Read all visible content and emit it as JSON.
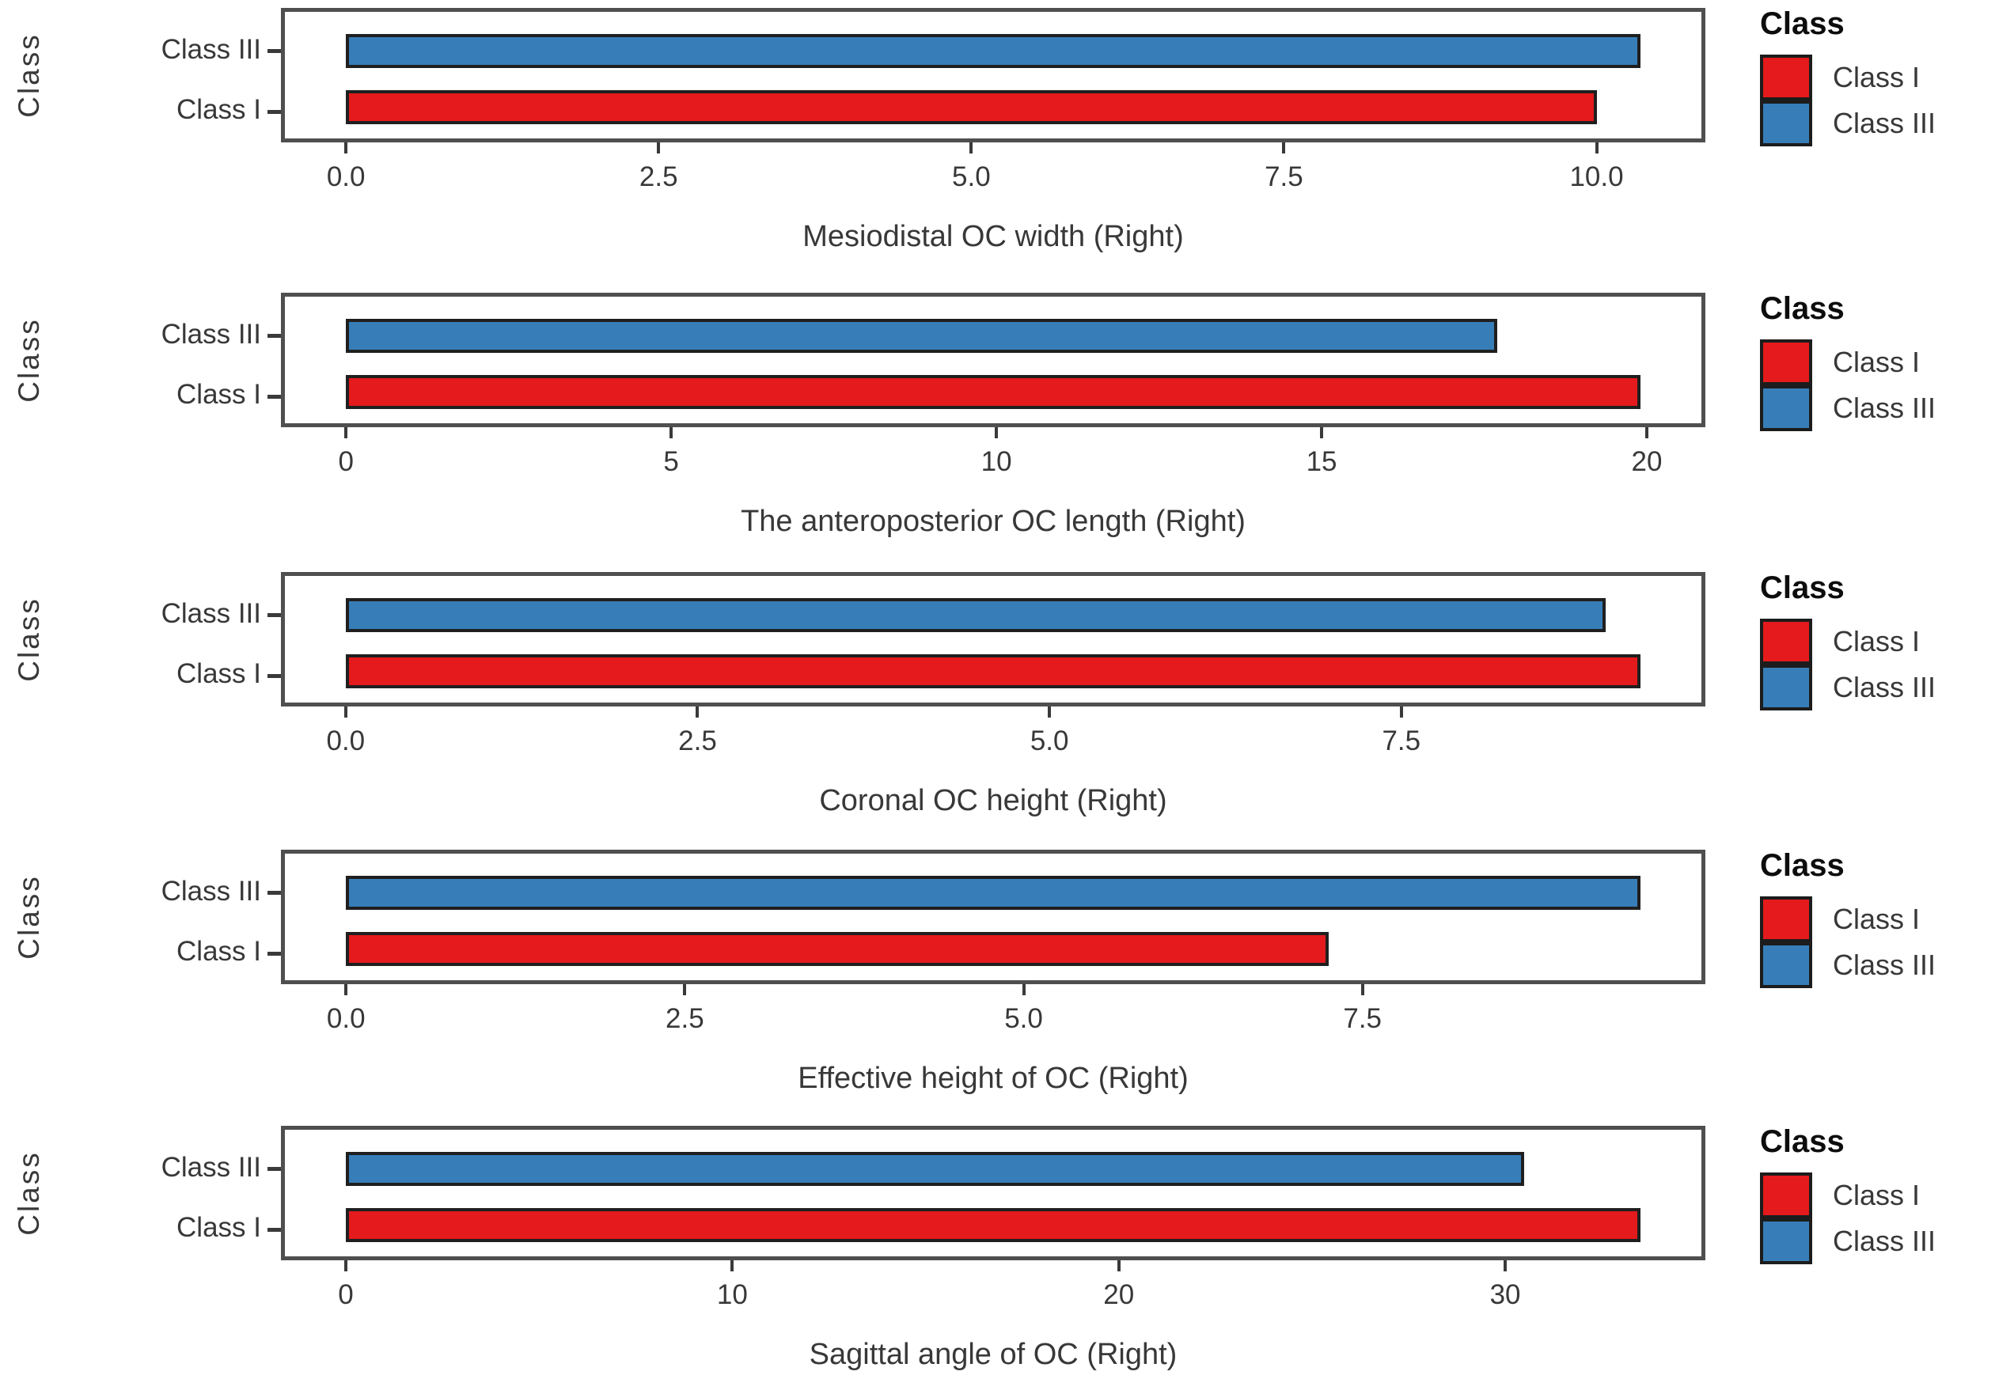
{
  "figure": {
    "y_axis_label": "Class",
    "background": "#ffffff",
    "legend": {
      "title": "Class",
      "position": "right",
      "items": [
        {
          "label": "Class I",
          "color": "#e41a1c"
        },
        {
          "label": "Class III",
          "color": "#377eb8"
        }
      ]
    },
    "colors": {
      "class_i": "#e41a1c",
      "class_iii": "#377eb8",
      "panel_border": "#4f4f4f",
      "bar_outline": "#1f1f1f",
      "text": "#383838"
    }
  },
  "chart_data": [
    {
      "type": "bar",
      "orientation": "horizontal",
      "title": "Mesiodistal OC width (Right)",
      "xlabel": "Mesiodistal OC width (Right)",
      "ylabel": "Class",
      "categories": [
        "Class III",
        "Class I"
      ],
      "series": [
        {
          "name": "Class III",
          "value": 10.35,
          "color": "#377eb8"
        },
        {
          "name": "Class I",
          "value": 10.0,
          "color": "#e41a1c"
        }
      ],
      "xticks": [
        0,
        2.5,
        5,
        7.5,
        10
      ],
      "xtick_labels": [
        "0.0",
        "2.5",
        "5.0",
        "7.5",
        "10.0"
      ],
      "xlim": [
        -0.52,
        10.87
      ],
      "grid": false,
      "legend_position": "right"
    },
    {
      "type": "bar",
      "orientation": "horizontal",
      "title": "The anteroposterior OC length (Right)",
      "xlabel": "The anteroposterior OC length (Right)",
      "ylabel": "Class",
      "categories": [
        "Class III",
        "Class I"
      ],
      "series": [
        {
          "name": "Class III",
          "value": 17.7,
          "color": "#377eb8"
        },
        {
          "name": "Class I",
          "value": 19.9,
          "color": "#e41a1c"
        }
      ],
      "xticks": [
        0,
        5,
        10,
        15,
        20
      ],
      "xtick_labels": [
        "0",
        "5",
        "10",
        "15",
        "20"
      ],
      "xlim": [
        -1.0,
        20.9
      ],
      "grid": false,
      "legend_position": "right"
    },
    {
      "type": "bar",
      "orientation": "horizontal",
      "title": "Coronal OC height (Right)",
      "xlabel": "Coronal OC height (Right)",
      "ylabel": "Class",
      "categories": [
        "Class III",
        "Class I"
      ],
      "series": [
        {
          "name": "Class III",
          "value": 8.95,
          "color": "#377eb8"
        },
        {
          "name": "Class I",
          "value": 9.2,
          "color": "#e41a1c"
        }
      ],
      "xticks": [
        0,
        2.5,
        5,
        7.5
      ],
      "xtick_labels": [
        "0.0",
        "2.5",
        "5.0",
        "7.5"
      ],
      "xlim": [
        -0.46,
        9.66
      ],
      "grid": false,
      "legend_position": "right"
    },
    {
      "type": "bar",
      "orientation": "horizontal",
      "title": "Effective height of OC (Right)",
      "xlabel": "Effective height of OC (Right)",
      "ylabel": "Class",
      "categories": [
        "Class III",
        "Class I"
      ],
      "series": [
        {
          "name": "Class III",
          "value": 9.55,
          "color": "#377eb8"
        },
        {
          "name": "Class I",
          "value": 7.25,
          "color": "#e41a1c"
        }
      ],
      "xticks": [
        0,
        2.5,
        5,
        7.5
      ],
      "xtick_labels": [
        "0.0",
        "2.5",
        "5.0",
        "7.5"
      ],
      "xlim": [
        -0.48,
        10.03
      ],
      "grid": false,
      "legend_position": "right"
    },
    {
      "type": "bar",
      "orientation": "horizontal",
      "title": "Sagittal angle of OC  (Right)",
      "xlabel": "Sagittal angle of OC  (Right)",
      "ylabel": "Class",
      "categories": [
        "Class III",
        "Class I"
      ],
      "series": [
        {
          "name": "Class III",
          "value": 30.5,
          "color": "#377eb8"
        },
        {
          "name": "Class I",
          "value": 33.5,
          "color": "#e41a1c"
        }
      ],
      "xticks": [
        0,
        10,
        20,
        30
      ],
      "xtick_labels": [
        "0",
        "10",
        "20",
        "30"
      ],
      "xlim": [
        -1.68,
        35.18
      ],
      "grid": false,
      "legend_position": "right"
    }
  ],
  "layout": {
    "row_tops": [
      2,
      362,
      715,
      1066,
      1415
    ]
  }
}
